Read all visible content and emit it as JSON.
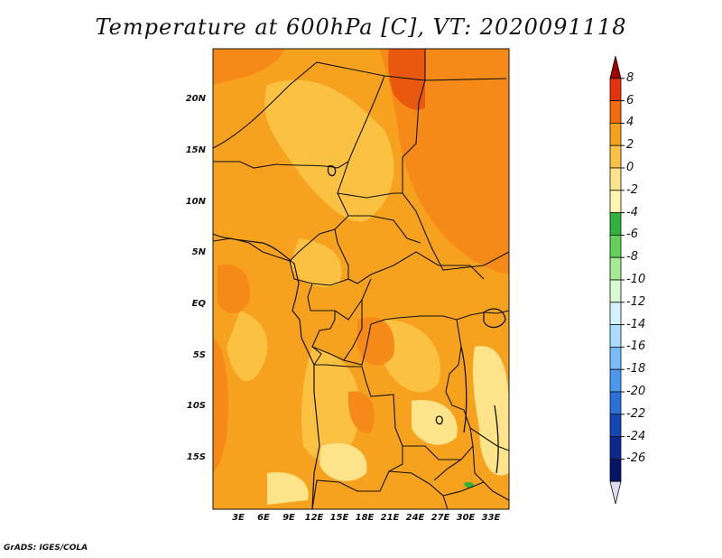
{
  "title": "Temperature at 600hPa [C], VT: 2020091118",
  "footer": "GrADS: IGES/COLA",
  "map": {
    "lat_ticks": [
      "20N",
      "15N",
      "10N",
      "5N",
      "EQ",
      "5S",
      "10S",
      "15S"
    ],
    "lon_ticks": [
      "3E",
      "6E",
      "9E",
      "12E",
      "15E",
      "18E",
      "21E",
      "24E",
      "27E",
      "30E",
      "33E"
    ],
    "extent": {
      "lon_min": 0,
      "lon_max": 35,
      "lat_min": -20,
      "lat_max": 25
    }
  },
  "colorbar": {
    "labels": [
      "8",
      "6",
      "4",
      "2",
      "0",
      "-2",
      "-4",
      "-6",
      "-8",
      "-10",
      "-12",
      "-14",
      "-16",
      "-18",
      "-20",
      "-22",
      "-24",
      "-26"
    ],
    "colors": [
      "#a00000",
      "#e5320a",
      "#f26b0f",
      "#f7a21e",
      "#fbc143",
      "#fde38a",
      "#fef6b0",
      "#2fb43a",
      "#61d15a",
      "#a4ec93",
      "#d8fad0",
      "#d4f1ff",
      "#a9dcff",
      "#78bcf7",
      "#4b98ee",
      "#2a70dd",
      "#1446b8",
      "#0a2890",
      "#051464",
      "#dcdcf0"
    ]
  }
}
